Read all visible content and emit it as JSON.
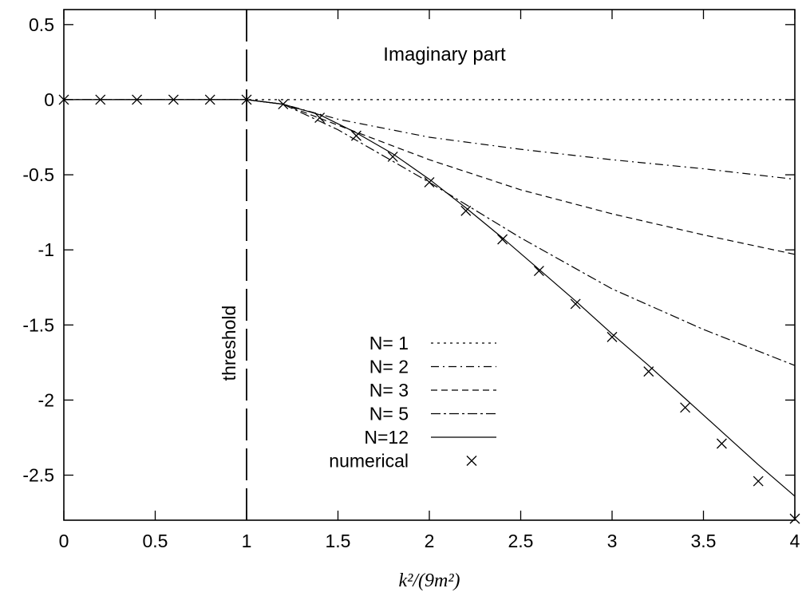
{
  "chart_data": {
    "type": "line",
    "title": "Imaginary part",
    "xlabel": "k²/(9m²)",
    "ylabel": "",
    "xlim": [
      0,
      4
    ],
    "ylim": [
      -2.8,
      0.6
    ],
    "x_ticks": [
      "0",
      "0.5",
      "1",
      "1.5",
      "2",
      "2.5",
      "3",
      "3.5",
      "4"
    ],
    "y_ticks": [
      "0.5",
      "0",
      "-0.5",
      "-1",
      "-1.5",
      "-2",
      "-2.5"
    ],
    "x_tick_values": [
      0,
      0.5,
      1,
      1.5,
      2,
      2.5,
      3,
      3.5,
      4
    ],
    "y_tick_values": [
      0.5,
      0,
      -0.5,
      -1,
      -1.5,
      -2,
      -2.5
    ],
    "grid": false,
    "legend_position": "center",
    "annotations": [
      {
        "text": "threshold",
        "x": 1
      }
    ],
    "series": [
      {
        "name": "N= 1",
        "style": "dotted",
        "x": [
          0,
          1,
          1.2,
          1.5,
          2,
          2.5,
          3,
          3.5,
          4
        ],
        "y": [
          0,
          0,
          0,
          0,
          0,
          0,
          0,
          0,
          0
        ]
      },
      {
        "name": "N= 2",
        "style": "dashdot",
        "x": [
          0,
          1,
          1.2,
          1.5,
          2,
          2.5,
          3,
          3.5,
          4
        ],
        "y": [
          0,
          0,
          -0.03,
          -0.13,
          -0.25,
          -0.33,
          -0.4,
          -0.46,
          -0.53
        ]
      },
      {
        "name": "N= 3",
        "style": "dashed",
        "x": [
          0,
          1,
          1.2,
          1.5,
          2,
          2.5,
          3,
          3.5,
          4
        ],
        "y": [
          0,
          0,
          -0.03,
          -0.17,
          -0.4,
          -0.6,
          -0.76,
          -0.9,
          -1.03
        ]
      },
      {
        "name": "N= 5",
        "style": "dashdot2",
        "x": [
          0,
          1,
          1.2,
          1.5,
          2,
          2.5,
          3,
          3.5,
          4
        ],
        "y": [
          0,
          0,
          -0.03,
          -0.2,
          -0.55,
          -0.92,
          -1.26,
          -1.53,
          -1.77
        ]
      },
      {
        "name": "N=12",
        "style": "solid",
        "x": [
          0,
          1,
          1.2,
          1.4,
          1.6,
          1.8,
          2,
          2.2,
          2.4,
          2.6,
          2.8,
          3,
          3.2,
          3.4,
          3.6,
          3.8,
          4
        ],
        "y": [
          0,
          0,
          -0.03,
          -0.1,
          -0.22,
          -0.36,
          -0.53,
          -0.72,
          -0.92,
          -1.13,
          -1.34,
          -1.56,
          -1.77,
          -1.99,
          -2.21,
          -2.43,
          -2.64
        ]
      },
      {
        "name": "numerical",
        "style": "markers",
        "x": [
          0,
          0.2,
          0.4,
          0.6,
          0.8,
          1.0,
          1.2,
          1.4,
          1.6,
          1.8,
          2.0,
          2.2,
          2.4,
          2.6,
          2.8,
          3.0,
          3.2,
          3.4,
          3.6,
          3.8,
          4.0
        ],
        "y": [
          0,
          0,
          0,
          0,
          0,
          0,
          -0.03,
          -0.12,
          -0.24,
          -0.38,
          -0.55,
          -0.74,
          -0.93,
          -1.14,
          -1.36,
          -1.58,
          -1.81,
          -2.05,
          -2.29,
          -2.54,
          -2.79
        ]
      }
    ]
  }
}
